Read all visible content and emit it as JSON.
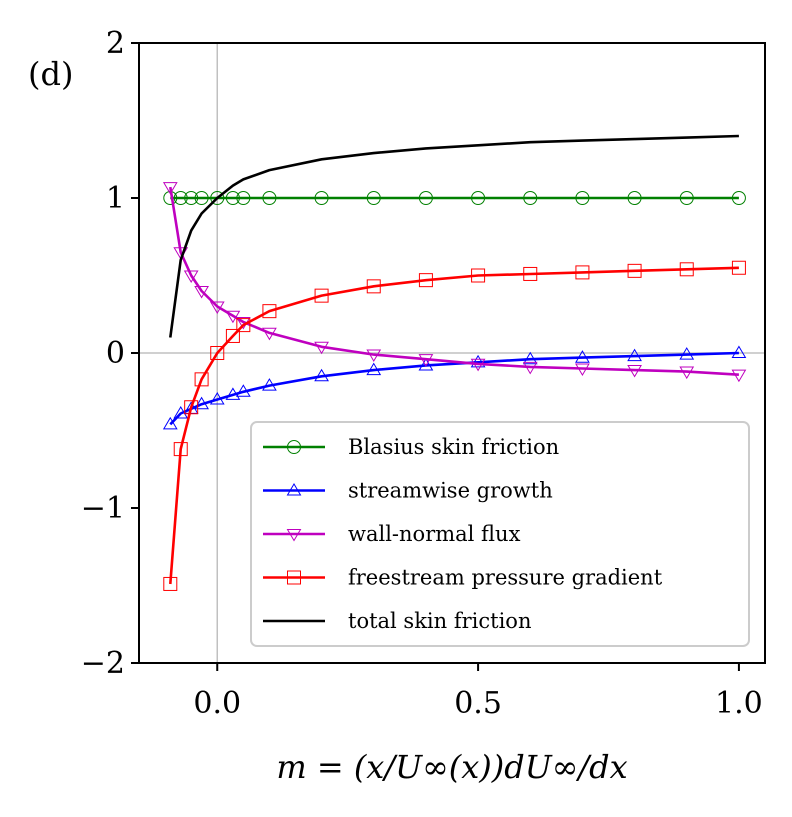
{
  "chart_data": {
    "type": "line",
    "panel_label": "(d)",
    "title": "",
    "xlabel": "m = (x/U∞(x))dU∞/dx",
    "ylabel": "",
    "xlim": [
      -0.15,
      1.05
    ],
    "ylim": [
      -2,
      2
    ],
    "xticks": [
      {
        "value": 0.0,
        "label": "0.0"
      },
      {
        "value": 0.5,
        "label": "0.5"
      },
      {
        "value": 1.0,
        "label": "1.0"
      }
    ],
    "yticks": [
      {
        "value": -2,
        "label": "−2"
      },
      {
        "value": -1,
        "label": "−1"
      },
      {
        "value": 0,
        "label": "0"
      },
      {
        "value": 1,
        "label": "1"
      },
      {
        "value": 2,
        "label": "2"
      }
    ],
    "reference_lines": {
      "x": 0,
      "y": 0,
      "color": "#c0c0c0"
    },
    "legend_position": "lower-right",
    "series": [
      {
        "name": "Blasius skin friction",
        "color": "#008000",
        "marker": "circle",
        "x": [
          -0.09,
          -0.07,
          -0.05,
          -0.03,
          0.0,
          0.03,
          0.05,
          0.1,
          0.2,
          0.3,
          0.4,
          0.5,
          0.6,
          0.7,
          0.8,
          0.9,
          1.0
        ],
        "y": [
          1,
          1,
          1,
          1,
          1,
          1,
          1,
          1,
          1,
          1,
          1,
          1,
          1,
          1,
          1,
          1,
          1
        ]
      },
      {
        "name": "streamwise growth",
        "color": "#0000ff",
        "marker": "triangle-up",
        "x": [
          -0.09,
          -0.07,
          -0.05,
          -0.03,
          0.0,
          0.03,
          0.05,
          0.1,
          0.2,
          0.3,
          0.4,
          0.5,
          0.6,
          0.7,
          0.8,
          0.9,
          1.0
        ],
        "y": [
          -0.46,
          -0.39,
          -0.36,
          -0.33,
          -0.3,
          -0.27,
          -0.25,
          -0.21,
          -0.15,
          -0.11,
          -0.08,
          -0.06,
          -0.04,
          -0.03,
          -0.02,
          -0.01,
          0.0
        ]
      },
      {
        "name": "wall-normal flux",
        "color": "#bf00bf",
        "marker": "triangle-down",
        "x": [
          -0.09,
          -0.07,
          -0.05,
          -0.03,
          0.0,
          0.03,
          0.05,
          0.1,
          0.2,
          0.3,
          0.4,
          0.5,
          0.6,
          0.7,
          0.8,
          0.9,
          1.0
        ],
        "y": [
          1.07,
          0.65,
          0.5,
          0.4,
          0.3,
          0.24,
          0.2,
          0.13,
          0.04,
          -0.01,
          -0.04,
          -0.07,
          -0.09,
          -0.1,
          -0.11,
          -0.12,
          -0.14
        ]
      },
      {
        "name": "freestream pressure gradient",
        "color": "#ff0000",
        "marker": "square",
        "x": [
          -0.09,
          -0.07,
          -0.05,
          -0.03,
          0.0,
          0.03,
          0.05,
          0.1,
          0.2,
          0.3,
          0.4,
          0.5,
          0.6,
          0.7,
          0.8,
          0.9,
          1.0
        ],
        "y": [
          -1.49,
          -0.62,
          -0.35,
          -0.17,
          0.0,
          0.11,
          0.18,
          0.27,
          0.37,
          0.43,
          0.47,
          0.5,
          0.51,
          0.52,
          0.53,
          0.54,
          0.55
        ]
      },
      {
        "name": "total skin friction",
        "color": "#000000",
        "marker": "none",
        "x": [
          -0.09,
          -0.07,
          -0.05,
          -0.03,
          0.0,
          0.03,
          0.05,
          0.1,
          0.2,
          0.3,
          0.4,
          0.5,
          0.6,
          0.7,
          0.8,
          0.9,
          1.0
        ],
        "y": [
          0.1,
          0.6,
          0.79,
          0.9,
          1.0,
          1.08,
          1.12,
          1.18,
          1.25,
          1.29,
          1.32,
          1.34,
          1.36,
          1.37,
          1.38,
          1.39,
          1.4
        ]
      }
    ]
  }
}
